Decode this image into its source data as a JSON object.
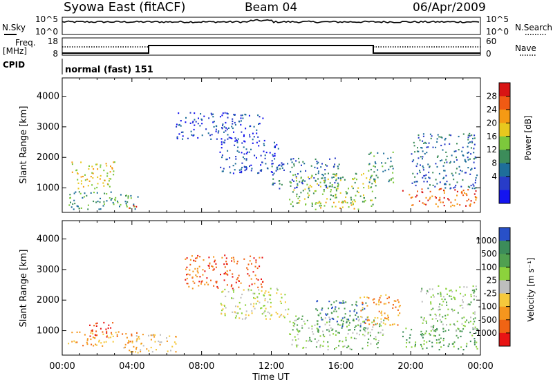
{
  "header": {
    "title": "Syowa East (fitACF)",
    "beam": "Beam 04",
    "date": "06/Apr/2009"
  },
  "strips": {
    "sky_label": "N.Sky",
    "search_label": "N.Search",
    "sky_ticks": [
      "10^5",
      "10^0"
    ],
    "search_ticks": [
      "10^5",
      "10^0"
    ],
    "freq_label_1": "Freq.",
    "freq_label_2": "[MHz]",
    "freq_ticks": [
      "18",
      "8"
    ],
    "nave_label": "Nave",
    "nave_ticks": [
      "60",
      "0"
    ],
    "cpid_label": "CPID",
    "cpid_value": "normal (fast) 151"
  },
  "chart_data": [
    {
      "type": "heatmap",
      "name": "power",
      "ylabel": "Slant Range [km]",
      "xlabel": "",
      "yticks": [
        1000,
        2000,
        3000,
        4000
      ],
      "ylim": [
        200,
        4600
      ],
      "xlim": [
        0,
        24
      ],
      "colorbar": {
        "label": "Power [dB]",
        "ticks": [
          "28",
          "24",
          "20",
          "16",
          "12",
          "8",
          "4"
        ],
        "colors": [
          "#d81414",
          "#f05a14",
          "#f59a14",
          "#e8c81e",
          "#7dc83c",
          "#3c8c5a",
          "#1e6e9a",
          "#283cc8",
          "#1414f0"
        ]
      },
      "regions": [
        {
          "t0": 0.3,
          "t1": 4.5,
          "r0": 300,
          "r1": 900,
          "level": 5
        },
        {
          "t0": 0.5,
          "t1": 3.0,
          "r0": 1000,
          "r1": 1900,
          "level": 3
        },
        {
          "t0": 3.5,
          "t1": 4.3,
          "r0": 300,
          "r1": 450,
          "level": 0
        },
        {
          "t0": 6.5,
          "t1": 11.5,
          "r0": 2600,
          "r1": 3500,
          "level": 7
        },
        {
          "t0": 9.0,
          "t1": 12.5,
          "r0": 1500,
          "r1": 2600,
          "level": 7
        },
        {
          "t0": 12.0,
          "t1": 16.0,
          "r0": 1000,
          "r1": 2000,
          "level": 6
        },
        {
          "t0": 13.0,
          "t1": 18.0,
          "r0": 400,
          "r1": 1500,
          "level": 4
        },
        {
          "t0": 14.5,
          "t1": 17.0,
          "r0": 300,
          "r1": 600,
          "level": 3
        },
        {
          "t0": 17.5,
          "t1": 19.0,
          "r0": 1200,
          "r1": 2200,
          "level": 5
        },
        {
          "t0": 19.5,
          "t1": 23.8,
          "r0": 400,
          "r1": 1000,
          "level": 1
        },
        {
          "t0": 20.0,
          "t1": 23.8,
          "r0": 1000,
          "r1": 2800,
          "level": 6
        }
      ]
    },
    {
      "type": "heatmap",
      "name": "velocity",
      "ylabel": "Slant Range [km]",
      "xlabel": "Time UT",
      "xticks": [
        "00:00",
        "04:00",
        "08:00",
        "12:00",
        "16:00",
        "20:00",
        "00:00"
      ],
      "yticks": [
        1000,
        2000,
        3000,
        4000
      ],
      "ylim": [
        200,
        4600
      ],
      "xlim": [
        0,
        24
      ],
      "colorbar": {
        "label": "Velocity [m s⁻¹]",
        "ticks": [
          "1000",
          "500",
          "100",
          "25",
          "-25",
          "-100",
          "-500",
          "-1000"
        ],
        "colors": [
          "#2850c8",
          "#3c8c5a",
          "#50a050",
          "#8cd23c",
          "#bebebe",
          "#f5c83c",
          "#f5961e",
          "#f06414",
          "#e81414"
        ]
      },
      "regions": [
        {
          "t0": 0.3,
          "t1": 4.5,
          "r0": 500,
          "r1": 1000,
          "level": 6
        },
        {
          "t0": 1.5,
          "t1": 3.0,
          "r0": 800,
          "r1": 1300,
          "level": 8
        },
        {
          "t0": 3.5,
          "t1": 6.5,
          "r0": 300,
          "r1": 900,
          "level": 5
        },
        {
          "t0": 7.0,
          "t1": 11.5,
          "r0": 2400,
          "r1": 3500,
          "level": 7
        },
        {
          "t0": 9.0,
          "t1": 13.0,
          "r0": 1400,
          "r1": 2400,
          "level": 4
        },
        {
          "t0": 13.0,
          "t1": 18.5,
          "r0": 400,
          "r1": 1500,
          "level": 3
        },
        {
          "t0": 14.5,
          "t1": 17.5,
          "r0": 1000,
          "r1": 2000,
          "level": 1
        },
        {
          "t0": 17.0,
          "t1": 19.5,
          "r0": 1200,
          "r1": 2200,
          "level": 6
        },
        {
          "t0": 19.5,
          "t1": 23.8,
          "r0": 400,
          "r1": 1100,
          "level": 2
        },
        {
          "t0": 20.5,
          "t1": 23.8,
          "r0": 1000,
          "r1": 2500,
          "level": 3
        }
      ]
    }
  ]
}
